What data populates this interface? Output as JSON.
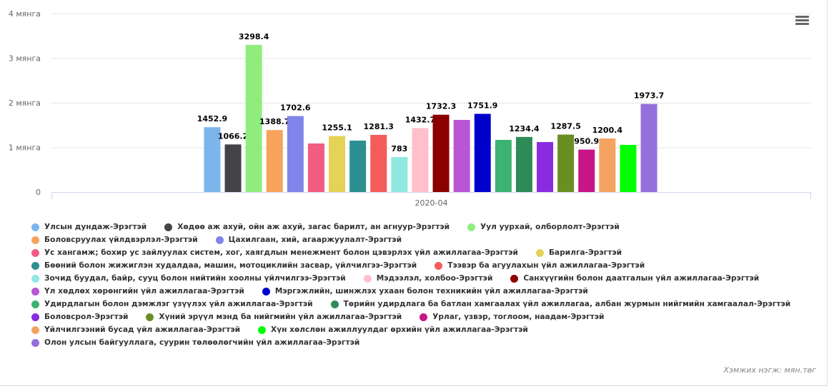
{
  "chart_data": {
    "type": "bar",
    "categories": [
      "2020-04"
    ],
    "ylim": [
      0,
      4000
    ],
    "yticks": [
      {
        "value": 0,
        "label": "0"
      },
      {
        "value": 1000,
        "label": "1 мянга"
      },
      {
        "value": 2000,
        "label": "2 мянга"
      },
      {
        "value": 3000,
        "label": "3 мянга"
      },
      {
        "value": 4000,
        "label": "4 мянга"
      }
    ],
    "grid": true,
    "legend_position": "bottom",
    "series": [
      {
        "name": "Улсын дундаж-Эрэгтэй",
        "values": [
          1452.9
        ],
        "color": "#7cb5ec",
        "label": "1452.9"
      },
      {
        "name": "Хөдөө аж ахуй, ойн аж ахуй, загас барилт, ан агнуур-Эрэгтэй",
        "values": [
          1066.2
        ],
        "color": "#434348",
        "label": "1066.2"
      },
      {
        "name": "Уул уурхай, олборлолт-Эрэгтэй",
        "values": [
          3298.4
        ],
        "color": "#90ed7d",
        "label": "3298.4"
      },
      {
        "name": "Боловсруулах үйлдвэрлэл-Эрэгтэй",
        "values": [
          1388.7
        ],
        "color": "#f7a35c",
        "label": "1388.7"
      },
      {
        "name": "Цахилгаан, хий, агааржуулалт-Эрэгтэй",
        "values": [
          1702.6
        ],
        "color": "#8085e9",
        "label": "1702.6"
      },
      {
        "name": "Ус хангамж; бохир ус зайлуулах систем, хог, хаягдлын менежмент болон цэвэрлэх үйл ажиллагаа-Эрэгтэй",
        "values": [
          1088
        ],
        "color": "#f15c80",
        "label": ""
      },
      {
        "name": "Барилга-Эрэгтэй",
        "values": [
          1255.1
        ],
        "color": "#e4d354",
        "label": "1255.1"
      },
      {
        "name": "Бөөний болон жижиглэн худалдаа, машин, мотоциклийн засвар, үйлчилгээ-Эрэгтэй",
        "values": [
          1152
        ],
        "color": "#2b908f",
        "label": ""
      },
      {
        "name": "Тээвэр ба агуулахын үйл ажиллагаа-Эрэгтэй",
        "values": [
          1281.3
        ],
        "color": "#f45b5b",
        "label": "1281.3"
      },
      {
        "name": "Зочид буудал, байр, сууц болон нийтийн хоолны үйлчилгээ-Эрэгтэй",
        "values": [
          783
        ],
        "color": "#91e8e1",
        "label": "783"
      },
      {
        "name": "Мэдээлэл, холбоо-Эрэгтэй",
        "values": [
          1432.7
        ],
        "color": "#ffc0cb",
        "label": "1432.7"
      },
      {
        "name": "Санхүүгийн болон даатгалын үйл ажиллагаа-Эрэгтэй",
        "values": [
          1732.3
        ],
        "color": "#8b0000",
        "label": "1732.3"
      },
      {
        "name": "Үл хөдлөх хөрөнгийн үйл ажиллагаа-Эрэгтэй",
        "values": [
          1616
        ],
        "color": "#ba55d3",
        "label": ""
      },
      {
        "name": "Мэргэжлийн, шинжлэх ухаан болон техникийн үйл ажиллагаа-Эрэгтэй",
        "values": [
          1751.9
        ],
        "color": "#0000cd",
        "label": "1751.9"
      },
      {
        "name": "Удирдлагын болон дэмжлэг үзүүлэх үйл ажиллагаа-Эрэгтэй",
        "values": [
          1168
        ],
        "color": "#3cb371",
        "label": ""
      },
      {
        "name": "Төрийн удирдлага ба батлан хамгаалах үйл ажиллагаа, албан журмын нийгмийн хамгаалал-Эрэгтэй",
        "values": [
          1234.4
        ],
        "color": "#2e8b57",
        "label": "1234.4"
      },
      {
        "name": "Боловсрол-Эрэгтэй",
        "values": [
          1120
        ],
        "color": "#8a2be2",
        "label": ""
      },
      {
        "name": "Хүний эрүүл мэнд ба нийгмийн үйл ажиллагаа-Эрэгтэй",
        "values": [
          1287.5
        ],
        "color": "#6b8e23",
        "label": "1287.5"
      },
      {
        "name": "Урлаг, үзвэр, тоглоом, наадам-Эрэгтэй",
        "values": [
          950.9
        ],
        "color": "#c71585",
        "label": "950.9"
      },
      {
        "name": "Үйлчилгээний бусад үйл ажиллагаа-Эрэгтэй",
        "values": [
          1200.4
        ],
        "color": "#f4a460",
        "label": "1200.4"
      },
      {
        "name": "Хүн хөлслөн ажиллуулдаг өрхийн үйл ажиллагаа-Эрэгтэй",
        "values": [
          1056
        ],
        "color": "#00ff00",
        "label": ""
      },
      {
        "name": "Олон улсын байгууллага, суурин төлөөлөгчийн үйл ажиллагаа-Эрэгтэй",
        "values": [
          1973.7
        ],
        "color": "#9370db",
        "label": "1973.7"
      }
    ]
  },
  "menu_icon": "hamburger-menu-icon",
  "unit_note": "Хэмжих нэгж: мян.төг"
}
